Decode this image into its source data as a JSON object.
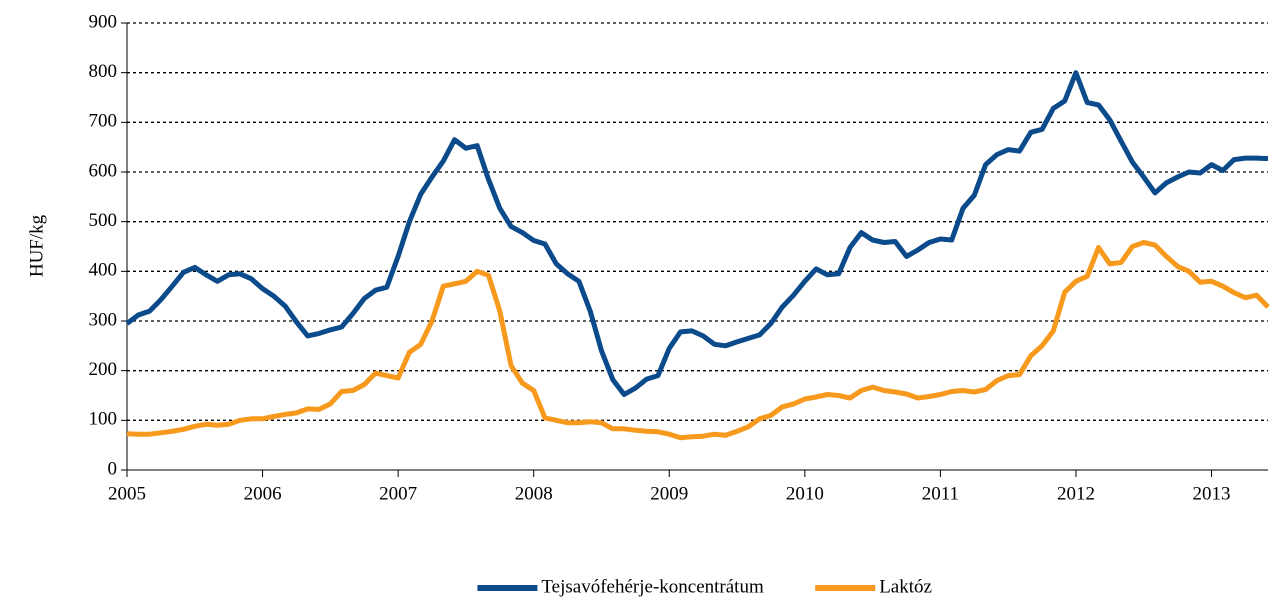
{
  "chart_data": {
    "type": "line",
    "y_label": "HUF/kg",
    "x": [
      2005,
      2005.0833,
      2005.1667,
      2005.25,
      2005.3333,
      2005.4167,
      2005.5,
      2005.5833,
      2005.6667,
      2005.75,
      2005.8333,
      2005.9167,
      2006,
      2006.0833,
      2006.1667,
      2006.25,
      2006.3333,
      2006.4167,
      2006.5,
      2006.5833,
      2006.6667,
      2006.75,
      2006.8333,
      2006.9167,
      2007,
      2007.0833,
      2007.1667,
      2007.25,
      2007.3333,
      2007.4167,
      2007.5,
      2007.5833,
      2007.6667,
      2007.75,
      2007.8333,
      2007.9167,
      2008,
      2008.0833,
      2008.1667,
      2008.25,
      2008.3333,
      2008.4167,
      2008.5,
      2008.5833,
      2008.6667,
      2008.75,
      2008.8333,
      2008.9167,
      2009,
      2009.0833,
      2009.1667,
      2009.25,
      2009.3333,
      2009.4167,
      2009.5,
      2009.5833,
      2009.6667,
      2009.75,
      2009.8333,
      2009.9167,
      2010,
      2010.0833,
      2010.1667,
      2010.25,
      2010.3333,
      2010.4167,
      2010.5,
      2010.5833,
      2010.6667,
      2010.75,
      2010.8333,
      2010.9167,
      2011,
      2011.0833,
      2011.1667,
      2011.25,
      2011.3333,
      2011.4167,
      2011.5,
      2011.5833,
      2011.6667,
      2011.75,
      2011.8333,
      2011.9167,
      2012,
      2012.0833,
      2012.1667,
      2012.25,
      2012.3333,
      2012.4167,
      2012.5,
      2012.5833,
      2012.6667,
      2012.75,
      2012.8333,
      2012.9167,
      2013,
      2013.0833,
      2013.1667,
      2013.25,
      2013.3333,
      2013.4167
    ],
    "series": [
      {
        "name": "Tejsavófehérje-koncentrátum",
        "color": "#0b4a8b",
        "values": [
          295,
          312,
          320,
          343,
          370,
          398,
          408,
          393,
          380,
          393,
          395,
          385,
          365,
          350,
          330,
          298,
          270,
          275,
          282,
          288,
          315,
          345,
          362,
          368,
          430,
          500,
          555,
          590,
          622,
          665,
          648,
          653,
          585,
          527,
          490,
          478,
          462,
          455,
          415,
          395,
          380,
          320,
          240,
          182,
          152,
          165,
          183,
          190,
          245,
          278,
          280,
          270,
          253,
          250,
          258,
          265,
          272,
          295,
          328,
          352,
          380,
          405,
          393,
          395,
          448,
          478,
          463,
          458,
          460,
          430,
          443,
          458,
          465,
          463,
          527,
          553,
          615,
          635,
          645,
          642,
          680,
          686,
          728,
          743,
          800,
          740,
          735,
          705,
          662,
          620,
          590,
          558,
          578,
          590,
          600,
          598,
          615,
          603,
          625,
          628,
          628,
          627
        ]
      },
      {
        "name": "Laktóz",
        "color": "#f7991c",
        "values": [
          73,
          72,
          72,
          75,
          78,
          82,
          88,
          92,
          90,
          92,
          100,
          103,
          103,
          108,
          112,
          115,
          123,
          122,
          133,
          158,
          160,
          172,
          195,
          190,
          185,
          237,
          253,
          300,
          370,
          375,
          380,
          400,
          392,
          320,
          210,
          175,
          160,
          105,
          100,
          95,
          95,
          97,
          95,
          83,
          83,
          80,
          78,
          77,
          72,
          65,
          67,
          68,
          72,
          70,
          78,
          87,
          103,
          110,
          127,
          133,
          143,
          147,
          152,
          150,
          145,
          160,
          167,
          160,
          157,
          153,
          145,
          148,
          152,
          158,
          160,
          157,
          162,
          180,
          190,
          192,
          230,
          250,
          280,
          358,
          380,
          390,
          448,
          415,
          418,
          450,
          458,
          453,
          430,
          410,
          400,
          378,
          380,
          370,
          357,
          347,
          352,
          328
        ]
      }
    ],
    "xlim": [
      2005,
      2013.4167
    ],
    "xticks": [
      2005,
      2006,
      2007,
      2008,
      2009,
      2010,
      2011,
      2012,
      2013
    ],
    "ylim": [
      0,
      900
    ],
    "yticks": [
      0,
      100,
      200,
      300,
      400,
      500,
      600,
      700,
      800,
      900
    ],
    "grid": true,
    "legend": "bottom"
  }
}
